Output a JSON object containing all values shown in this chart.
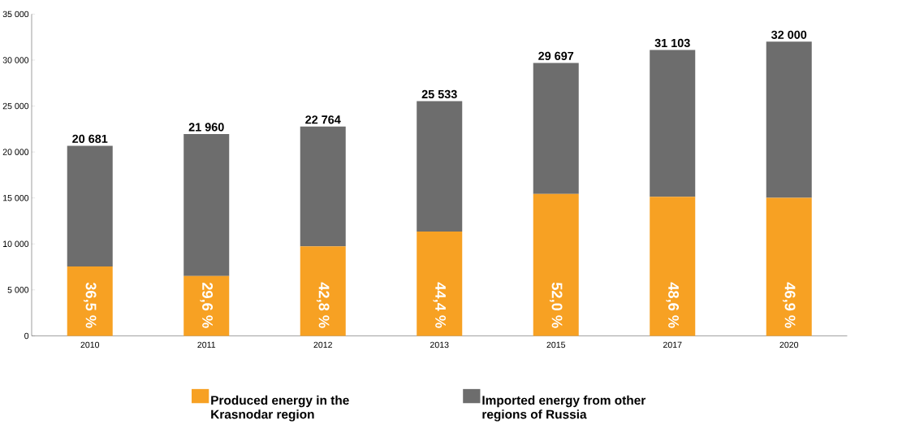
{
  "chart_data": {
    "type": "bar",
    "stacked": true,
    "categories": [
      "2010",
      "2011",
      "2012",
      "2013",
      "2015",
      "2017",
      "2020"
    ],
    "series": [
      {
        "name": "Produced energy in the Krasnodar region",
        "color": "#f7a123",
        "values": [
          7550,
          6500,
          9740,
          11340,
          15440,
          15120,
          15010
        ]
      },
      {
        "name": "Imported energy from other regions of Russia",
        "color": "#6d6d6d",
        "values": [
          13131,
          15460,
          13024,
          14193,
          14257,
          15983,
          16990
        ]
      }
    ],
    "totals": [
      "20 681",
      "21 960",
      "22 764",
      "25 533",
      "29 697",
      "31 103",
      "32 000"
    ],
    "annotations": [
      "36,5 %",
      "29,6 %",
      "42,8 %",
      "44,4 %",
      "52,0 %",
      "48,6 %",
      "46,9 %"
    ],
    "ylim": [
      0,
      35000
    ],
    "yticks": [
      {
        "value": 0,
        "label": "0"
      },
      {
        "value": 5000,
        "label": "5 000"
      },
      {
        "value": 10000,
        "label": "10 000"
      },
      {
        "value": 15000,
        "label": "15 000"
      },
      {
        "value": 20000,
        "label": "20 000"
      },
      {
        "value": 25000,
        "label": "25 000"
      },
      {
        "value": 30000,
        "label": "30 000"
      },
      {
        "value": 35000,
        "label": "35 000"
      }
    ],
    "legend": "bottom"
  }
}
